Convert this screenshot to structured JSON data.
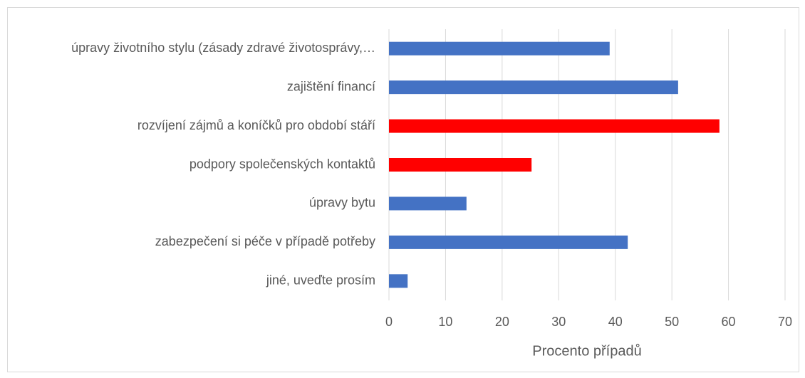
{
  "chart_data": {
    "type": "hbar",
    "categories": [
      "úpravy životního stylu (zásady zdravé životosprávy,…",
      "zajištění financí",
      "rozvíjení zájmů a koníčků pro období stáří",
      "podpory společenských kontaktů",
      "úpravy bytu",
      "zabezpečení si péče v případě potřeby",
      "jiné, uveďte prosím"
    ],
    "values": [
      39.0,
      51.1,
      58.4,
      25.2,
      13.7,
      42.2,
      3.3
    ],
    "colors": [
      "#4472c4",
      "#4472c4",
      "#ff0000",
      "#ff0000",
      "#4472c4",
      "#4472c4",
      "#4472c4"
    ],
    "xlabel": "Procento případů",
    "xlim": [
      0,
      70
    ],
    "xticks": [
      0,
      10,
      20,
      30,
      40,
      50,
      60,
      70
    ],
    "grid": true
  }
}
